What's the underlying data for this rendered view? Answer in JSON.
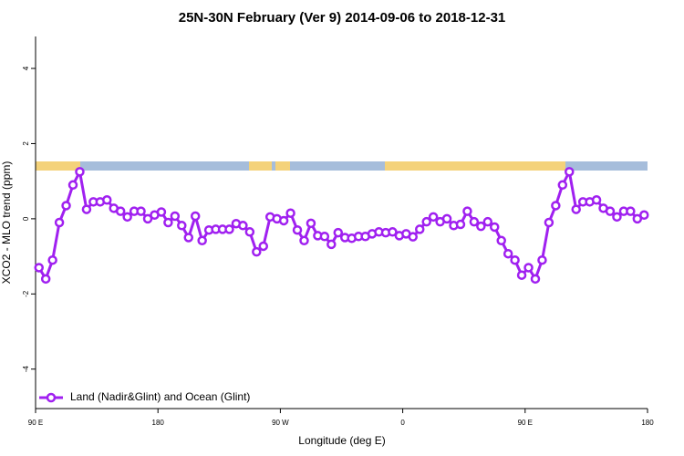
{
  "chart_data": {
    "type": "line",
    "title": "25N-30N February (Ver 9)   2014-09-06 to 2018-12-31",
    "x_label": "Longitude (deg E)",
    "y_label": "XCO2 - MLO trend (ppm)",
    "x": [
      92.5,
      97.5,
      102.5,
      107.5,
      112.5,
      117.5,
      122.5,
      127.5,
      132.5,
      137.5,
      142.5,
      147.5,
      152.5,
      157.5,
      162.5,
      167.5,
      172.5,
      177.5,
      182.5,
      187.5,
      192.5,
      197.5,
      202.5,
      207.5,
      212.5,
      217.5,
      222.5,
      227.5,
      232.5,
      237.5,
      242.5,
      247.5,
      252.5,
      257.5,
      262.5,
      267.5,
      272.5,
      277.5,
      282.5,
      287.5,
      292.5,
      297.5,
      302.5,
      307.5,
      312.5,
      317.5,
      322.5,
      327.5,
      332.5,
      337.5,
      342.5,
      347.5,
      352.5,
      357.5,
      362.5,
      367.5,
      372.5,
      377.5,
      382.5,
      387.5,
      392.5,
      397.5,
      402.5,
      407.5,
      412.5,
      417.5,
      422.5,
      427.5,
      432.5,
      437.5,
      442.5,
      447.5,
      452.5,
      457.5,
      462.5,
      467.5,
      472.5,
      477.5,
      482.5,
      487.5,
      492.5,
      497.5,
      502.5,
      507.5,
      512.5,
      517.5,
      522.5,
      527.5,
      532.5,
      537.5
    ],
    "series": [
      {
        "name": "Land (Nadir&Glint) and Ocean (Glint)",
        "color": "#a020f0",
        "values": [
          -1.3,
          -1.6,
          -1.1,
          -0.1,
          0.35,
          0.9,
          1.25,
          0.25,
          0.45,
          0.45,
          0.5,
          0.28,
          0.2,
          0.05,
          0.2,
          0.2,
          0,
          0.1,
          0.18,
          -0.1,
          0.07,
          -0.18,
          -0.5,
          0.07,
          -0.58,
          -0.3,
          -0.28,
          -0.28,
          -0.28,
          -0.13,
          -0.18,
          -0.35,
          -0.88,
          -0.73,
          0.05,
          0,
          -0.05,
          0.15,
          -0.3,
          -0.58,
          -0.12,
          -0.45,
          -0.47,
          -0.68,
          -0.37,
          -0.5,
          -0.52,
          -0.47,
          -0.47,
          -0.4,
          -0.35,
          -0.37,
          -0.35,
          -0.45,
          -0.4,
          -0.48,
          -0.28,
          -0.08,
          0.05,
          -0.08,
          0,
          -0.18,
          -0.15,
          0.2,
          -0.08,
          -0.2,
          -0.08,
          -0.22,
          -0.58,
          -0.93,
          -1.1,
          -1.5,
          -1.3,
          -1.6,
          -1.1,
          -0.1,
          0.35,
          0.9,
          1.25,
          0.25,
          0.45,
          0.45,
          0.5,
          0.28,
          0.2,
          0.05,
          0.2,
          0.2,
          0,
          0.1
        ]
      }
    ],
    "xlim": [
      90,
      540
    ],
    "xticks": [
      {
        "value": 90,
        "label": "90 E"
      },
      180,
      {
        "value": 270,
        "label": "90 W"
      },
      {
        "value": 360,
        "label": "0"
      },
      {
        "value": 450,
        "label": "90 E"
      },
      {
        "value": 540,
        "label": "180"
      }
    ],
    "ylim": [
      -5.05,
      4.85
    ],
    "yticks": [
      -4,
      -2,
      0,
      2,
      4
    ],
    "legend": "bottom-left"
  }
}
